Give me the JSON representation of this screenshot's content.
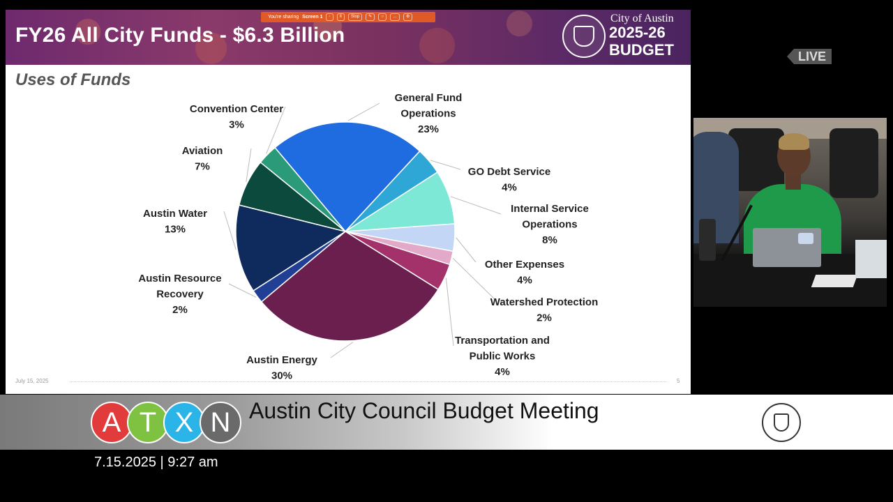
{
  "slide": {
    "title": "FY26 All City Funds - $6.3 Billion",
    "subtitle": "Uses of Funds",
    "brand_city": "City of Austin",
    "brand_year": "2025-26",
    "brand_budget": "BUDGET",
    "footer_date": "July 15, 2025",
    "page_number": "5"
  },
  "share_bar": {
    "sharing_text": "You're sharing",
    "screen_label": "Screen 1",
    "stop_label": "Stop"
  },
  "chart_data": {
    "type": "pie",
    "title": "Uses of Funds",
    "slices": [
      {
        "name": "General Fund Operations",
        "label_lines": [
          "General Fund",
          "Operations"
        ],
        "pct_label": "23%",
        "value": 23,
        "color": "#1f6be0"
      },
      {
        "name": "GO Debt Service",
        "label_lines": [
          "GO Debt Service"
        ],
        "pct_label": "4%",
        "value": 4,
        "color": "#2fa7d6"
      },
      {
        "name": "Internal Service Operations",
        "label_lines": [
          "Internal Service",
          "Operations"
        ],
        "pct_label": "8%",
        "value": 8,
        "color": "#7ee8d6"
      },
      {
        "name": "Other Expenses",
        "label_lines": [
          "Other Expenses"
        ],
        "pct_label": "4%",
        "value": 4,
        "color": "#c3d6f5"
      },
      {
        "name": "Watershed Protection",
        "label_lines": [
          "Watershed Protection"
        ],
        "pct_label": "2%",
        "value": 2,
        "color": "#e3a9c9"
      },
      {
        "name": "Transportation and Public Works",
        "label_lines": [
          "Transportation and",
          "Public Works"
        ],
        "pct_label": "4%",
        "value": 4,
        "color": "#a3326b"
      },
      {
        "name": "Austin Energy",
        "label_lines": [
          "Austin Energy"
        ],
        "pct_label": "30%",
        "value": 30,
        "color": "#6a1f4f"
      },
      {
        "name": "Austin Resource Recovery",
        "label_lines": [
          "Austin Resource",
          "Recovery"
        ],
        "pct_label": "2%",
        "value": 2,
        "color": "#203f95"
      },
      {
        "name": "Austin Water",
        "label_lines": [
          "Austin Water"
        ],
        "pct_label": "13%",
        "value": 13,
        "color": "#0f2a5c"
      },
      {
        "name": "Aviation",
        "label_lines": [
          "Aviation"
        ],
        "pct_label": "7%",
        "value": 7,
        "color": "#0b4a3c"
      },
      {
        "name": "Convention Center",
        "label_lines": [
          "Convention Center"
        ],
        "pct_label": "3%",
        "value": 3,
        "color": "#2a9a78"
      }
    ]
  },
  "live_badge": "LIVE",
  "banner": {
    "logo_letters": [
      "A",
      "T",
      "X",
      "N"
    ],
    "logo_colors": [
      "#e23b3b",
      "#7fc242",
      "#2bb4e8",
      "#6a6a6a"
    ],
    "meeting_title": "Austin City Council Budget Meeting"
  },
  "timestamp": "7.15.2025 | 9:27 am"
}
